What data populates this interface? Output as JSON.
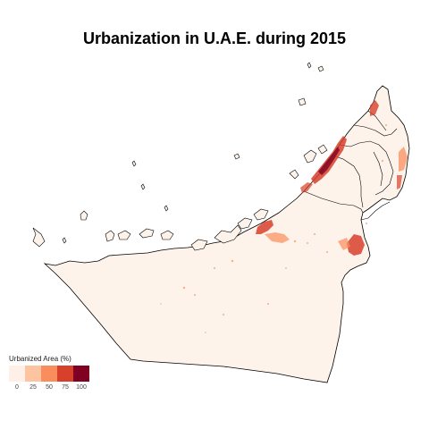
{
  "title": "Urbanization in U.A.E. during 2015",
  "legend": {
    "title": "Urbanized Area (%)",
    "ticks": [
      "0",
      "25",
      "50",
      "75",
      "100"
    ],
    "colors": [
      "#fef0e6",
      "#fdc59f",
      "#f98d5d",
      "#d7402b",
      "#7f0022"
    ]
  },
  "colors": {
    "land": "#fdf3ea",
    "border": "#000000"
  }
}
